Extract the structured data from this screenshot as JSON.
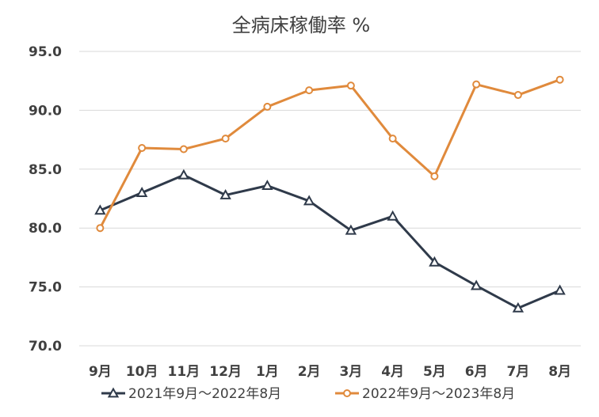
{
  "chart_data": {
    "type": "line",
    "title": "全病床稼働率 %",
    "categories": [
      "9月",
      "10月",
      "11月",
      "12月",
      "1月",
      "2月",
      "3月",
      "4月",
      "5月",
      "6月",
      "7月",
      "8月"
    ],
    "yticks": [
      "70.0",
      "75.0",
      "80.0",
      "85.0",
      "90.0",
      "95.0"
    ],
    "ylim": [
      70,
      95
    ],
    "grid": true,
    "legend_position": "bottom",
    "series": [
      {
        "name": "2021年9月～2022年8月",
        "color": "#2f3a4a",
        "marker": "triangle",
        "values": [
          81.5,
          83.0,
          84.5,
          82.8,
          83.6,
          82.3,
          79.8,
          81.0,
          77.1,
          75.1,
          73.2,
          74.7
        ]
      },
      {
        "name": "2022年9月～2023年8月",
        "color": "#e08a3c",
        "marker": "circle",
        "values": [
          80.0,
          86.8,
          86.7,
          87.6,
          90.3,
          91.7,
          92.1,
          87.6,
          84.4,
          92.2,
          91.3,
          92.6
        ]
      }
    ]
  }
}
